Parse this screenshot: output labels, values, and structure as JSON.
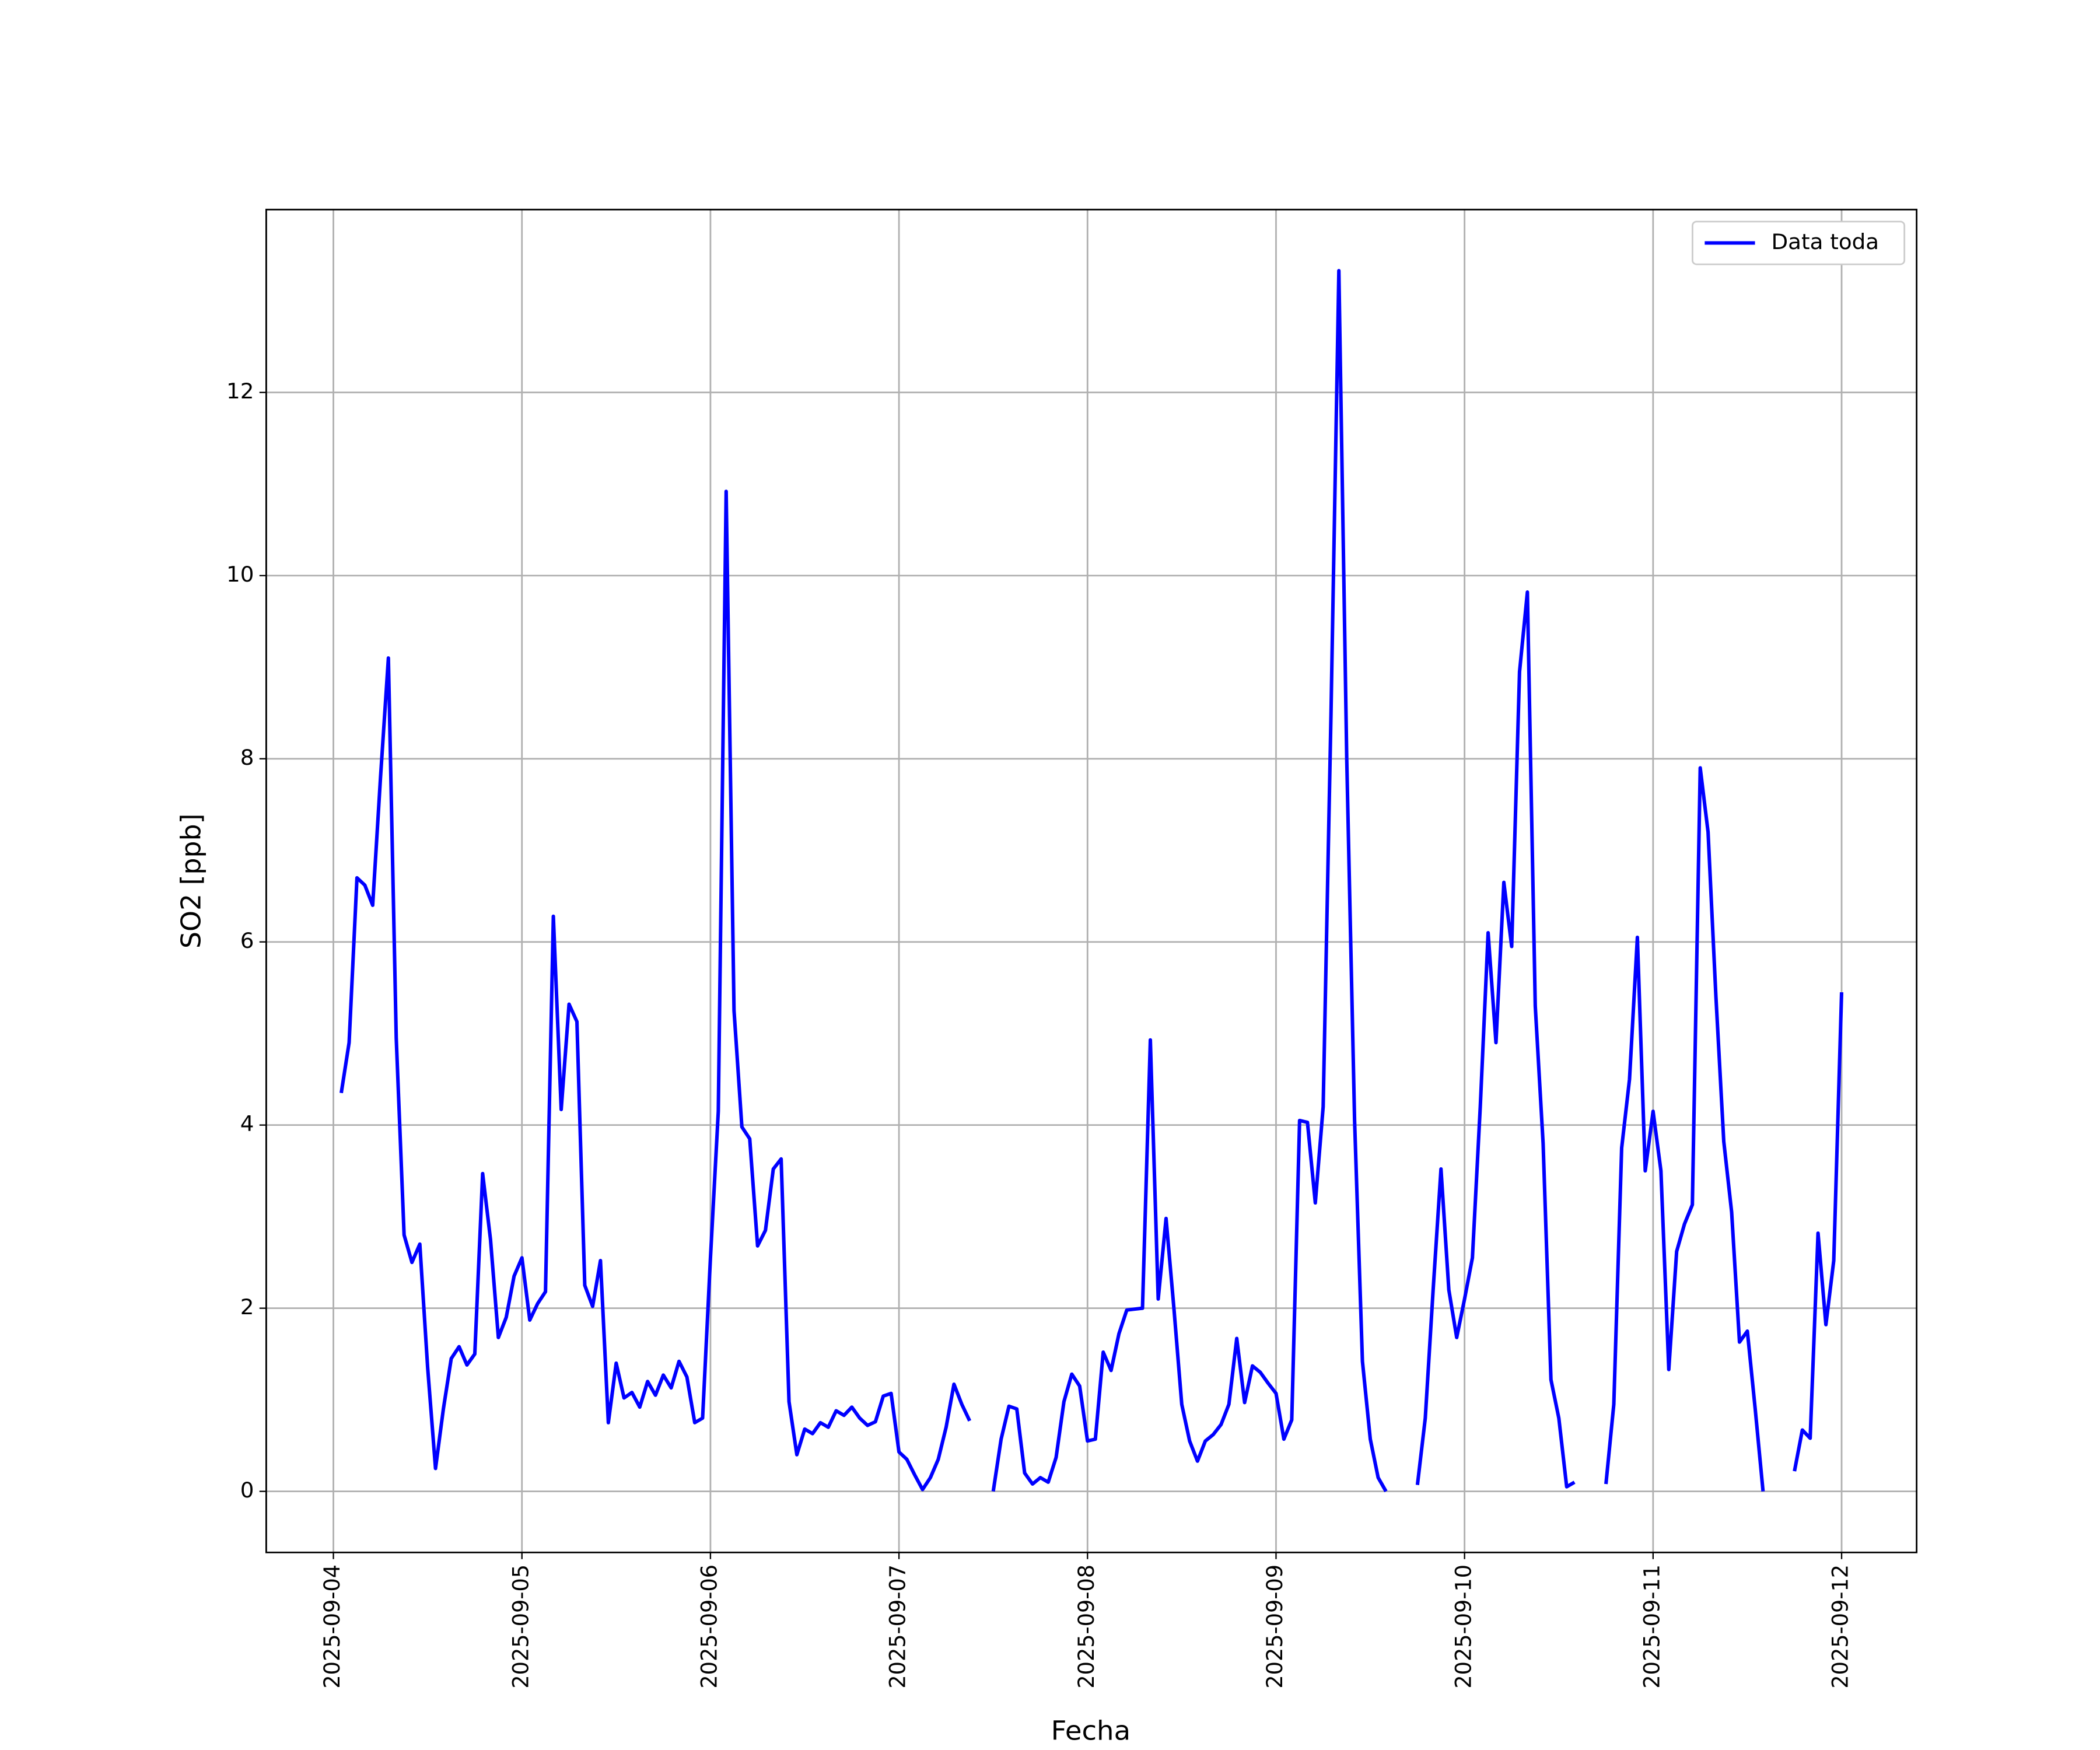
{
  "chart_data": {
    "type": "line",
    "xlabel": "Fecha",
    "ylabel": "SO2 [ppb]",
    "x": [
      "2025-09-04 01:00",
      "2025-09-04 02:00",
      "2025-09-04 03:00",
      "2025-09-04 04:00",
      "2025-09-04 05:00",
      "2025-09-04 06:00",
      "2025-09-04 07:00",
      "2025-09-04 08:00",
      "2025-09-04 09:00",
      "2025-09-04 10:00",
      "2025-09-04 11:00",
      "2025-09-04 12:00",
      "2025-09-04 13:00",
      "2025-09-04 14:00",
      "2025-09-04 15:00",
      "2025-09-04 16:00",
      "2025-09-04 17:00",
      "2025-09-04 18:00",
      "2025-09-04 19:00",
      "2025-09-04 20:00",
      "2025-09-04 21:00",
      "2025-09-04 22:00",
      "2025-09-04 23:00",
      "2025-09-05 00:00",
      "2025-09-05 01:00",
      "2025-09-05 02:00",
      "2025-09-05 03:00",
      "2025-09-05 04:00",
      "2025-09-05 05:00",
      "2025-09-05 06:00",
      "2025-09-05 07:00",
      "2025-09-05 08:00",
      "2025-09-05 09:00",
      "2025-09-05 10:00",
      "2025-09-05 11:00",
      "2025-09-05 12:00",
      "2025-09-05 13:00",
      "2025-09-05 14:00",
      "2025-09-05 15:00",
      "2025-09-05 16:00",
      "2025-09-05 17:00",
      "2025-09-05 18:00",
      "2025-09-05 19:00",
      "2025-09-05 20:00",
      "2025-09-05 21:00",
      "2025-09-05 22:00",
      "2025-09-05 23:00",
      "2025-09-06 00:00",
      "2025-09-06 01:00",
      "2025-09-06 02:00",
      "2025-09-06 03:00",
      "2025-09-06 04:00",
      "2025-09-06 05:00",
      "2025-09-06 06:00",
      "2025-09-06 07:00",
      "2025-09-06 08:00",
      "2025-09-06 09:00",
      "2025-09-06 10:00",
      "2025-09-06 11:00",
      "2025-09-06 12:00",
      "2025-09-06 13:00",
      "2025-09-06 14:00",
      "2025-09-06 15:00",
      "2025-09-06 16:00",
      "2025-09-06 17:00",
      "2025-09-06 18:00",
      "2025-09-06 19:00",
      "2025-09-06 20:00",
      "2025-09-06 21:00",
      "2025-09-06 22:00",
      "2025-09-06 23:00",
      "2025-09-07 00:00",
      "2025-09-07 01:00",
      "2025-09-07 02:00",
      "2025-09-07 03:00",
      "2025-09-07 04:00",
      "2025-09-07 05:00",
      "2025-09-07 06:00",
      "2025-09-07 07:00",
      "2025-09-07 08:00",
      "2025-09-07 09:00",
      "2025-09-07 10:00",
      "2025-09-07 11:00",
      "2025-09-07 12:00",
      "2025-09-07 13:00",
      "2025-09-07 14:00",
      "2025-09-07 15:00",
      "2025-09-07 16:00",
      "2025-09-07 17:00",
      "2025-09-07 18:00",
      "2025-09-07 19:00",
      "2025-09-07 20:00",
      "2025-09-07 21:00",
      "2025-09-07 22:00",
      "2025-09-07 23:00",
      "2025-09-08 00:00",
      "2025-09-08 01:00",
      "2025-09-08 02:00",
      "2025-09-08 03:00",
      "2025-09-08 04:00",
      "2025-09-08 05:00",
      "2025-09-08 06:00",
      "2025-09-08 07:00",
      "2025-09-08 08:00",
      "2025-09-08 09:00",
      "2025-09-08 10:00",
      "2025-09-08 11:00",
      "2025-09-08 12:00",
      "2025-09-08 13:00",
      "2025-09-08 14:00",
      "2025-09-08 15:00",
      "2025-09-08 16:00",
      "2025-09-08 17:00",
      "2025-09-08 18:00",
      "2025-09-08 19:00",
      "2025-09-08 20:00",
      "2025-09-08 21:00",
      "2025-09-08 22:00",
      "2025-09-08 23:00",
      "2025-09-09 00:00",
      "2025-09-09 01:00",
      "2025-09-09 02:00",
      "2025-09-09 03:00",
      "2025-09-09 04:00",
      "2025-09-09 05:00",
      "2025-09-09 06:00",
      "2025-09-09 07:00",
      "2025-09-09 08:00",
      "2025-09-09 09:00",
      "2025-09-09 10:00",
      "2025-09-09 11:00",
      "2025-09-09 12:00",
      "2025-09-09 13:00",
      "2025-09-09 14:00",
      "2025-09-09 15:00",
      "2025-09-09 16:00",
      "2025-09-09 17:00",
      "2025-09-09 18:00",
      "2025-09-09 19:00",
      "2025-09-09 20:00",
      "2025-09-09 21:00",
      "2025-09-09 22:00",
      "2025-09-09 23:00",
      "2025-09-10 00:00",
      "2025-09-10 01:00",
      "2025-09-10 02:00",
      "2025-09-10 03:00",
      "2025-09-10 04:00",
      "2025-09-10 05:00",
      "2025-09-10 06:00",
      "2025-09-10 07:00",
      "2025-09-10 08:00",
      "2025-09-10 09:00",
      "2025-09-10 10:00",
      "2025-09-10 11:00",
      "2025-09-10 12:00",
      "2025-09-10 13:00",
      "2025-09-10 14:00",
      "2025-09-10 15:00",
      "2025-09-10 16:00",
      "2025-09-10 17:00",
      "2025-09-10 18:00",
      "2025-09-10 19:00",
      "2025-09-10 20:00",
      "2025-09-10 21:00",
      "2025-09-10 22:00",
      "2025-09-10 23:00",
      "2025-09-11 00:00",
      "2025-09-11 01:00",
      "2025-09-11 02:00",
      "2025-09-11 03:00",
      "2025-09-11 04:00",
      "2025-09-11 05:00",
      "2025-09-11 06:00",
      "2025-09-11 07:00",
      "2025-09-11 08:00",
      "2025-09-11 09:00",
      "2025-09-11 10:00",
      "2025-09-11 11:00",
      "2025-09-11 12:00",
      "2025-09-11 13:00",
      "2025-09-11 14:00",
      "2025-09-11 15:00",
      "2025-09-11 16:00",
      "2025-09-11 17:00",
      "2025-09-11 18:00",
      "2025-09-11 19:00",
      "2025-09-11 20:00",
      "2025-09-11 21:00",
      "2025-09-11 22:00",
      "2025-09-11 23:00",
      "2025-09-12 00:00"
    ],
    "series": [
      {
        "name": "Data toda",
        "color": "#0000ff",
        "values": [
          4.35,
          4.9,
          6.7,
          6.62,
          6.4,
          7.8,
          9.1,
          4.95,
          2.8,
          2.5,
          2.7,
          1.35,
          0.25,
          0.9,
          1.45,
          1.58,
          1.38,
          1.5,
          3.47,
          2.75,
          1.68,
          1.9,
          2.35,
          2.55,
          1.87,
          2.05,
          2.18,
          6.28,
          4.17,
          5.32,
          5.13,
          2.25,
          2.02,
          2.52,
          0.75,
          1.4,
          1.02,
          1.08,
          0.92,
          1.2,
          1.05,
          1.27,
          1.13,
          1.42,
          1.25,
          0.75,
          0.8,
          2.55,
          4.15,
          10.92,
          5.25,
          3.98,
          3.85,
          2.68,
          2.85,
          3.52,
          3.63,
          0.98,
          0.4,
          0.68,
          0.63,
          0.75,
          0.7,
          0.88,
          0.83,
          0.92,
          0.8,
          0.72,
          0.76,
          1.04,
          1.07,
          0.43,
          0.35,
          0.18,
          0.02,
          0.15,
          0.35,
          0.7,
          1.17,
          0.95,
          0.77,
          null,
          null,
          0.0,
          0.57,
          0.93,
          0.9,
          0.2,
          0.08,
          0.15,
          0.1,
          0.37,
          0.98,
          1.28,
          1.15,
          0.55,
          0.57,
          1.52,
          1.32,
          1.72,
          1.98,
          1.99,
          2.0,
          4.93,
          2.1,
          2.98,
          2.0,
          0.95,
          0.55,
          0.33,
          0.55,
          0.62,
          0.73,
          0.95,
          1.67,
          0.97,
          1.37,
          1.3,
          1.18,
          1.07,
          0.57,
          0.78,
          4.05,
          4.03,
          3.15,
          4.2,
          8.5,
          13.33,
          8.0,
          4.05,
          1.42,
          0.57,
          0.15,
          0.0,
          null,
          null,
          null,
          0.07,
          0.8,
          2.2,
          3.52,
          2.2,
          1.68,
          2.1,
          2.55,
          4.2,
          6.1,
          4.9,
          6.65,
          5.95,
          8.95,
          9.82,
          5.3,
          3.8,
          1.22,
          0.8,
          0.05,
          0.1,
          null,
          null,
          null,
          0.08,
          0.95,
          3.75,
          4.5,
          6.05,
          3.5,
          4.15,
          3.5,
          1.33,
          2.62,
          2.92,
          3.13,
          7.9,
          7.2,
          5.4,
          3.82,
          3.05,
          1.63,
          1.75,
          0.9,
          0.0,
          null,
          null,
          null,
          0.22,
          0.67,
          0.58,
          2.82,
          1.82,
          2.52,
          5.45
        ]
      }
    ],
    "xlim": [
      "2025-09-03 15:27",
      "2025-09-12 09:33"
    ],
    "xticks": [
      "2025-09-04",
      "2025-09-05",
      "2025-09-06",
      "2025-09-07",
      "2025-09-08",
      "2025-09-09",
      "2025-09-10",
      "2025-09-11",
      "2025-09-12"
    ],
    "ylim": [
      -0.667,
      13.997
    ],
    "yticks": [
      0,
      2,
      4,
      6,
      8,
      10,
      12
    ],
    "grid": true,
    "legend": "upper right"
  }
}
